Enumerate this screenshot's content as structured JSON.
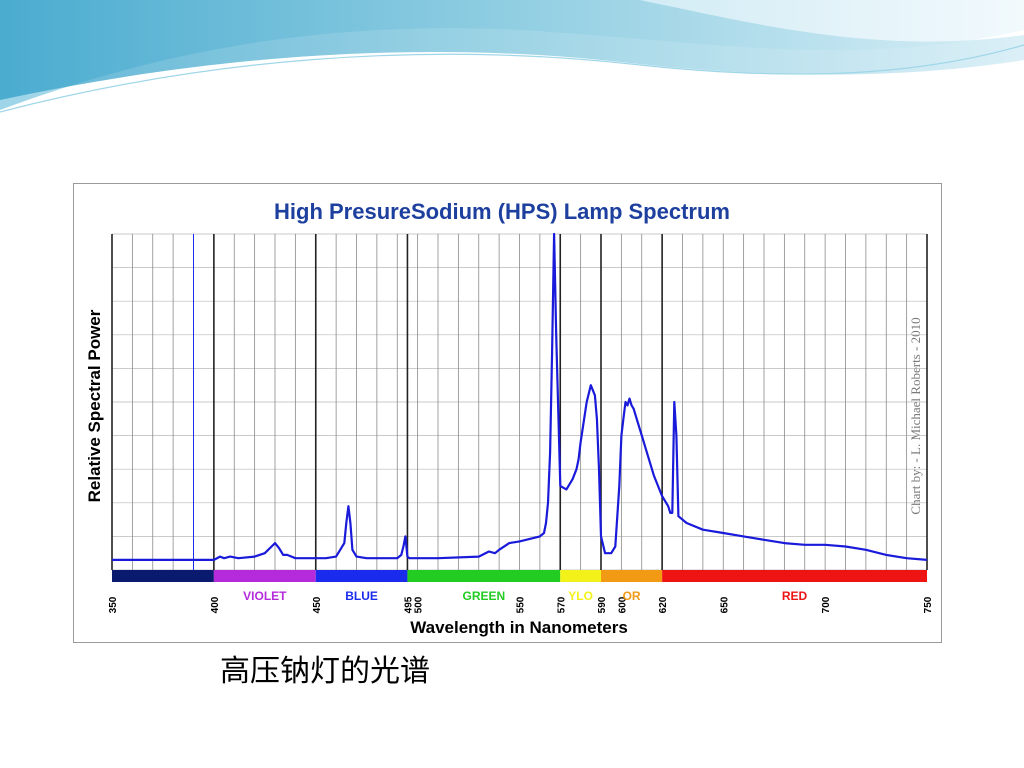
{
  "slide": {
    "caption": "高压钠灯的光谱"
  },
  "colors": {
    "banner_light": "#cfeaf4",
    "banner_mid": "#7ec6dd",
    "banner_dark": "#3aa3c8",
    "title": "#1d3f9e",
    "curve": "#1a1adb"
  },
  "chart_data": {
    "type": "line",
    "title": "High PresureSodium (HPS) Lamp Spectrum",
    "xlabel": "Wavelength in Nanometers",
    "ylabel": "Relative Spectral Power",
    "credit": "Chart by: - L. Michael Roberts - 2010",
    "xlim": [
      350,
      750
    ],
    "ylim": [
      0,
      1
    ],
    "grid": true,
    "x_ticks": [
      350,
      400,
      450,
      495,
      500,
      550,
      570,
      590,
      600,
      620,
      650,
      700,
      750
    ],
    "bands": [
      {
        "label": "",
        "from": 350,
        "to": 400,
        "color": "#0a1a6e"
      },
      {
        "label": "VIOLET",
        "from": 400,
        "to": 450,
        "color": "#b52bdc"
      },
      {
        "label": "BLUE",
        "from": 450,
        "to": 495,
        "color": "#1a2bee"
      },
      {
        "label": "GREEN",
        "from": 495,
        "to": 570,
        "color": "#22cc22"
      },
      {
        "label": "YLO",
        "from": 570,
        "to": 590,
        "color": "#f2f21a"
      },
      {
        "label": "OR",
        "from": 590,
        "to": 620,
        "color": "#f29a14"
      },
      {
        "label": "RED",
        "from": 620,
        "to": 750,
        "color": "#ee1414"
      }
    ],
    "band_label_colors": {
      "VIOLET": "#b52bdc",
      "BLUE": "#1a2bee",
      "GREEN": "#22cc22",
      "YLO": "#f2f21a",
      "OR": "#f29a14",
      "RED": "#ee1414"
    },
    "series": [
      {
        "x": [
          350,
          360,
          370,
          380,
          390,
          400,
          403,
          405,
          408,
          412,
          420,
          425,
          430,
          432,
          433,
          434,
          436,
          440,
          445,
          450,
          455,
          460,
          464,
          465,
          466,
          467,
          468,
          470,
          475,
          480,
          490,
          492,
          493,
          494,
          495,
          496,
          497,
          500,
          510,
          530,
          535,
          538,
          540,
          545,
          550,
          560,
          562,
          563,
          564,
          565,
          566,
          567,
          568,
          570,
          573,
          576,
          578,
          579,
          580,
          583,
          585,
          587,
          588,
          589,
          590,
          592,
          595,
          597,
          599,
          600,
          601,
          602,
          603,
          604,
          605,
          606,
          608,
          610,
          613,
          616,
          620,
          623,
          624,
          625,
          626,
          627,
          628,
          632,
          640,
          650,
          660,
          670,
          680,
          690,
          700,
          710,
          720,
          730,
          740,
          750
        ],
        "y": [
          0.03,
          0.03,
          0.03,
          0.03,
          0.03,
          0.03,
          0.04,
          0.035,
          0.04,
          0.035,
          0.04,
          0.05,
          0.08,
          0.065,
          0.055,
          0.045,
          0.045,
          0.035,
          0.035,
          0.035,
          0.035,
          0.04,
          0.08,
          0.14,
          0.19,
          0.14,
          0.06,
          0.04,
          0.035,
          0.035,
          0.035,
          0.045,
          0.07,
          0.1,
          0.04,
          0.035,
          0.035,
          0.035,
          0.035,
          0.04,
          0.055,
          0.05,
          0.06,
          0.08,
          0.085,
          0.1,
          0.11,
          0.14,
          0.2,
          0.35,
          0.65,
          1.0,
          0.7,
          0.25,
          0.24,
          0.27,
          0.3,
          0.33,
          0.38,
          0.5,
          0.55,
          0.52,
          0.45,
          0.3,
          0.1,
          0.05,
          0.05,
          0.07,
          0.25,
          0.4,
          0.45,
          0.5,
          0.49,
          0.51,
          0.49,
          0.48,
          0.44,
          0.4,
          0.34,
          0.28,
          0.22,
          0.19,
          0.17,
          0.17,
          0.5,
          0.4,
          0.16,
          0.14,
          0.12,
          0.11,
          0.1,
          0.09,
          0.08,
          0.075,
          0.075,
          0.07,
          0.06,
          0.045,
          0.035,
          0.03
        ]
      }
    ]
  }
}
